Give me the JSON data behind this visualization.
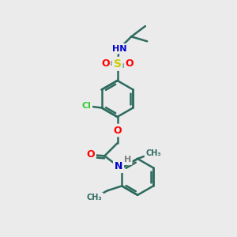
{
  "bg_color": "#ebebeb",
  "bond_color": "#2d6b5e",
  "bond_width": 1.8,
  "atom_colors": {
    "H": "#808080",
    "N": "#0000cc",
    "O": "#ff0000",
    "S": "#cccc00",
    "Cl": "#33cc33"
  },
  "font_size": 8,
  "fig_size": [
    3.0,
    3.0
  ],
  "dpi": 100,
  "xlim": [
    0,
    10
  ],
  "ylim": [
    0,
    10
  ]
}
